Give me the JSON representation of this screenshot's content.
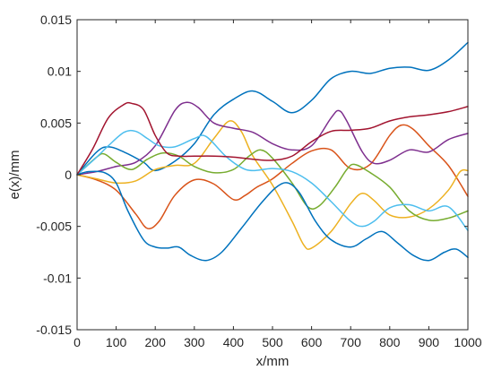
{
  "chart_data": {
    "type": "line",
    "title": "",
    "xlabel": "x/mm",
    "ylabel": "e(x)/mm",
    "xlim": [
      0,
      1000
    ],
    "ylim": [
      -0.015,
      0.015
    ],
    "x_ticks": [
      0,
      100,
      200,
      300,
      400,
      500,
      600,
      700,
      800,
      900,
      1000
    ],
    "x_tick_labels": [
      "0",
      "100",
      "200",
      "300",
      "400",
      "500",
      "600",
      "700",
      "800",
      "900",
      "1000"
    ],
    "y_ticks": [
      -0.015,
      -0.01,
      -0.005,
      0,
      0.005,
      0.01,
      0.015
    ],
    "y_tick_labels": [
      "-0.015",
      "-0.01",
      "-0.005",
      "0",
      "0.005",
      "0.01",
      "0.015"
    ],
    "grid": false,
    "legend": "none",
    "series": [
      {
        "color": "#0072bd",
        "points": [
          [
            0,
            0
          ],
          [
            50,
            0.0022
          ],
          [
            80,
            0.0027
          ],
          [
            120,
            0.0022
          ],
          [
            170,
            0.0012
          ],
          [
            200,
            0.0004
          ],
          [
            250,
            0.0013
          ],
          [
            300,
            0.003
          ],
          [
            350,
            0.0058
          ],
          [
            400,
            0.0073
          ],
          [
            450,
            0.0081
          ],
          [
            500,
            0.0071
          ],
          [
            550,
            0.006
          ],
          [
            600,
            0.0072
          ],
          [
            650,
            0.0093
          ],
          [
            700,
            0.01
          ],
          [
            750,
            0.0098
          ],
          [
            800,
            0.0103
          ],
          [
            850,
            0.0104
          ],
          [
            900,
            0.0101
          ],
          [
            950,
            0.0111
          ],
          [
            1000,
            0.0128
          ]
        ]
      },
      {
        "color": "#d95319",
        "points": [
          [
            0,
            0
          ],
          [
            50,
            -0.0005
          ],
          [
            100,
            -0.0015
          ],
          [
            150,
            -0.0038
          ],
          [
            180,
            -0.0052
          ],
          [
            210,
            -0.0045
          ],
          [
            250,
            -0.002
          ],
          [
            300,
            -0.0005
          ],
          [
            350,
            -0.0009
          ],
          [
            400,
            -0.0024
          ],
          [
            430,
            -0.002
          ],
          [
            460,
            -0.0012
          ],
          [
            500,
            -0.0004
          ],
          [
            550,
            0.0011
          ],
          [
            600,
            0.0023
          ],
          [
            650,
            0.0024
          ],
          [
            700,
            0.0006
          ],
          [
            750,
            0.001
          ],
          [
            800,
            0.0038
          ],
          [
            830,
            0.0048
          ],
          [
            860,
            0.0044
          ],
          [
            900,
            0.0028
          ],
          [
            950,
            0.0009
          ],
          [
            1000,
            -0.0021
          ]
        ]
      },
      {
        "color": "#edb120",
        "points": [
          [
            0,
            0
          ],
          [
            50,
            -0.0004
          ],
          [
            100,
            -0.0008
          ],
          [
            150,
            -0.0006
          ],
          [
            200,
            0.0005
          ],
          [
            250,
            0.0009
          ],
          [
            300,
            0.0011
          ],
          [
            350,
            0.0035
          ],
          [
            390,
            0.0052
          ],
          [
            420,
            0.0042
          ],
          [
            450,
            0.0018
          ],
          [
            500,
            -0.001
          ],
          [
            550,
            -0.0045
          ],
          [
            580,
            -0.0068
          ],
          [
            600,
            -0.0071
          ],
          [
            650,
            -0.0055
          ],
          [
            700,
            -0.0028
          ],
          [
            730,
            -0.0018
          ],
          [
            760,
            -0.0025
          ],
          [
            800,
            -0.0039
          ],
          [
            850,
            -0.0041
          ],
          [
            900,
            -0.0033
          ],
          [
            950,
            -0.0015
          ],
          [
            980,
            0.0003
          ],
          [
            1000,
            0.0004
          ]
        ]
      },
      {
        "color": "#7e2f8e",
        "points": [
          [
            0,
            0
          ],
          [
            50,
            0.0003
          ],
          [
            100,
            0.0008
          ],
          [
            150,
            0.0012
          ],
          [
            200,
            0.0028
          ],
          [
            250,
            0.0062
          ],
          [
            280,
            0.007
          ],
          [
            310,
            0.0065
          ],
          [
            350,
            0.005
          ],
          [
            400,
            0.0045
          ],
          [
            450,
            0.0041
          ],
          [
            500,
            0.003
          ],
          [
            550,
            0.0024
          ],
          [
            600,
            0.0028
          ],
          [
            650,
            0.0055
          ],
          [
            670,
            0.0062
          ],
          [
            690,
            0.0052
          ],
          [
            730,
            0.0022
          ],
          [
            760,
            0.0011
          ],
          [
            800,
            0.0014
          ],
          [
            850,
            0.0024
          ],
          [
            900,
            0.0022
          ],
          [
            950,
            0.0034
          ],
          [
            1000,
            0.004
          ]
        ]
      },
      {
        "color": "#77ac30",
        "points": [
          [
            0,
            0
          ],
          [
            50,
            0.0017
          ],
          [
            70,
            0.002
          ],
          [
            100,
            0.0012
          ],
          [
            140,
            0.0005
          ],
          [
            180,
            0.0015
          ],
          [
            220,
            0.0021
          ],
          [
            260,
            0.0018
          ],
          [
            300,
            0.0008
          ],
          [
            350,
            0.0002
          ],
          [
            400,
            0.0005
          ],
          [
            440,
            0.0018
          ],
          [
            470,
            0.0024
          ],
          [
            500,
            0.0016
          ],
          [
            550,
            -0.0008
          ],
          [
            590,
            -0.0031
          ],
          [
            620,
            -0.003
          ],
          [
            660,
            -0.0012
          ],
          [
            690,
            0.0005
          ],
          [
            710,
            0.001
          ],
          [
            750,
            0.0002
          ],
          [
            800,
            -0.0012
          ],
          [
            850,
            -0.0035
          ],
          [
            900,
            -0.0044
          ],
          [
            950,
            -0.0042
          ],
          [
            1000,
            -0.0035
          ]
        ]
      },
      {
        "color": "#4dbeee",
        "points": [
          [
            0,
            0
          ],
          [
            50,
            0.0017
          ],
          [
            80,
            0.0028
          ],
          [
            120,
            0.0041
          ],
          [
            150,
            0.0042
          ],
          [
            180,
            0.0035
          ],
          [
            210,
            0.0028
          ],
          [
            250,
            0.0027
          ],
          [
            300,
            0.0035
          ],
          [
            330,
            0.0037
          ],
          [
            380,
            0.0018
          ],
          [
            420,
            0.0007
          ],
          [
            450,
            0.0004
          ],
          [
            500,
            0.0006
          ],
          [
            550,
            0.0003
          ],
          [
            600,
            -0.0008
          ],
          [
            650,
            -0.0026
          ],
          [
            700,
            -0.0045
          ],
          [
            730,
            -0.005
          ],
          [
            760,
            -0.0045
          ],
          [
            800,
            -0.0032
          ],
          [
            850,
            -0.0029
          ],
          [
            900,
            -0.0035
          ],
          [
            950,
            -0.0031
          ],
          [
            1000,
            -0.0054
          ]
        ]
      },
      {
        "color": "#a2142f",
        "points": [
          [
            0,
            0
          ],
          [
            40,
            0.0025
          ],
          [
            80,
            0.0055
          ],
          [
            120,
            0.0068
          ],
          [
            140,
            0.0069
          ],
          [
            170,
            0.0063
          ],
          [
            200,
            0.0038
          ],
          [
            230,
            0.0021
          ],
          [
            260,
            0.0018
          ],
          [
            300,
            0.0018
          ],
          [
            350,
            0.0018
          ],
          [
            400,
            0.0017
          ],
          [
            450,
            0.0015
          ],
          [
            500,
            0.0014
          ],
          [
            550,
            0.0018
          ],
          [
            600,
            0.0032
          ],
          [
            650,
            0.0042
          ],
          [
            700,
            0.0043
          ],
          [
            750,
            0.0045
          ],
          [
            800,
            0.0052
          ],
          [
            850,
            0.0056
          ],
          [
            900,
            0.0058
          ],
          [
            950,
            0.0061
          ],
          [
            1000,
            0.0066
          ]
        ]
      },
      {
        "color": "#0072bd",
        "points": [
          [
            0,
            0
          ],
          [
            30,
            0.0003
          ],
          [
            70,
            0.0002
          ],
          [
            100,
            -0.0008
          ],
          [
            130,
            -0.0035
          ],
          [
            170,
            -0.0063
          ],
          [
            200,
            -0.007
          ],
          [
            230,
            -0.0071
          ],
          [
            260,
            -0.007
          ],
          [
            290,
            -0.0078
          ],
          [
            330,
            -0.0083
          ],
          [
            370,
            -0.0075
          ],
          [
            420,
            -0.0052
          ],
          [
            470,
            -0.0028
          ],
          [
            510,
            -0.0012
          ],
          [
            540,
            -0.0008
          ],
          [
            570,
            -0.0018
          ],
          [
            610,
            -0.0045
          ],
          [
            650,
            -0.0063
          ],
          [
            700,
            -0.007
          ],
          [
            740,
            -0.0062
          ],
          [
            780,
            -0.0055
          ],
          [
            820,
            -0.0066
          ],
          [
            860,
            -0.0078
          ],
          [
            900,
            -0.0083
          ],
          [
            940,
            -0.0075
          ],
          [
            970,
            -0.0072
          ],
          [
            1000,
            -0.008
          ]
        ]
      }
    ]
  }
}
